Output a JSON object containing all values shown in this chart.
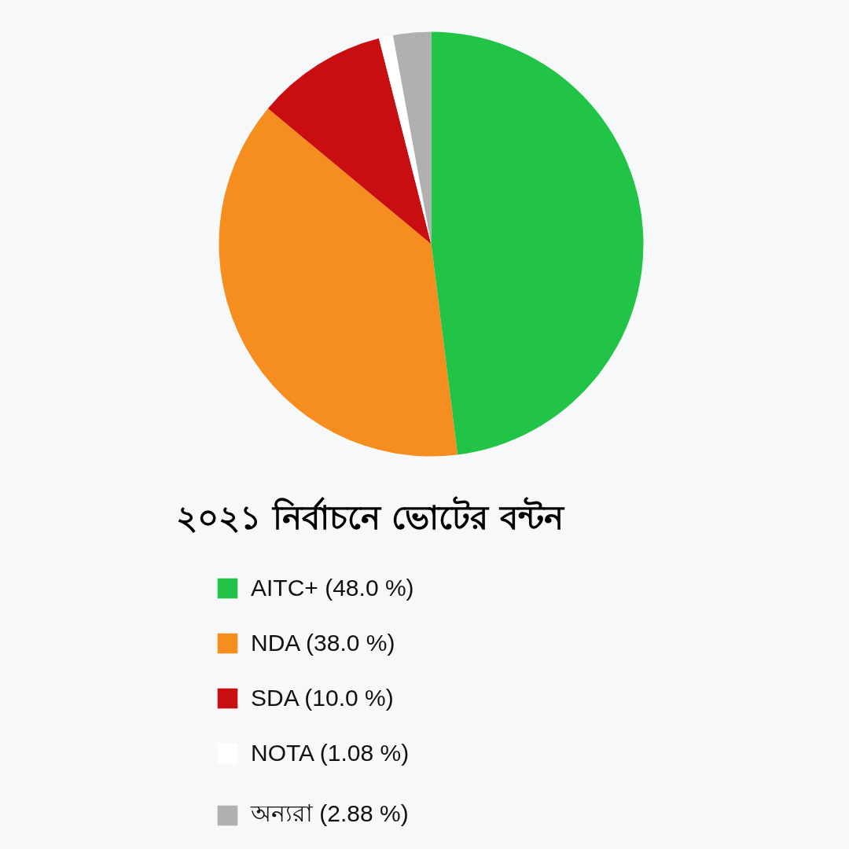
{
  "chart_data": {
    "type": "pie",
    "title": "২০২১ নির্বাচনে ভোটের বন্টন",
    "categories": [
      "AITC+ (48.0 %)",
      "NDA (38.0 %)",
      "SDA (10.0 %)",
      "NOTA (1.08 %)",
      "অন্যরা (2.88 %)"
    ],
    "values": [
      48.0,
      38.0,
      10.0,
      1.08,
      2.88
    ],
    "colors": [
      "#22c447",
      "#f68d1f",
      "#c90e11",
      "#ffffff",
      "#b0b0b0"
    ],
    "legend": "bottom"
  }
}
